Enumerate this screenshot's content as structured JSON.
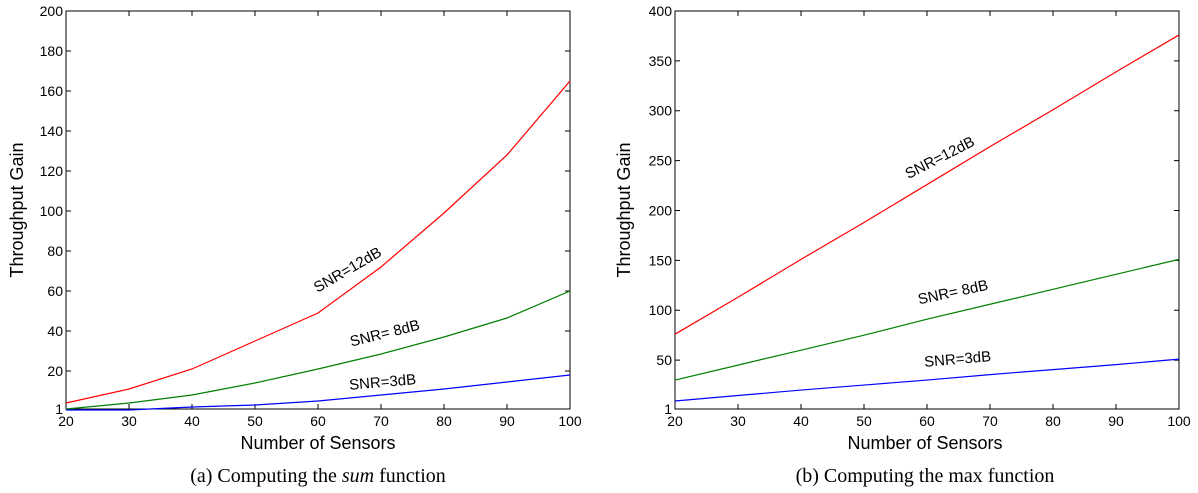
{
  "chart_data": [
    {
      "type": "line",
      "caption_prefix": "(a) Computing the ",
      "caption_em": "sum",
      "caption_suffix": " function",
      "xlabel": "Number of Sensors",
      "ylabel": "Throughput Gain",
      "xlim": [
        20,
        100
      ],
      "ylim": [
        1,
        200
      ],
      "xticks": [
        20,
        30,
        40,
        50,
        60,
        70,
        80,
        90,
        100
      ],
      "yticks": [
        1,
        20,
        40,
        60,
        80,
        100,
        120,
        140,
        160,
        180,
        200
      ],
      "grid": false,
      "x": [
        20,
        30,
        40,
        50,
        60,
        70,
        80,
        90,
        100
      ],
      "series": [
        {
          "name": "SNR=12dB",
          "color": "#ff0000",
          "values": [
            4,
            11,
            21,
            35,
            49,
            72,
            99,
            128,
            165
          ]
        },
        {
          "name": "SNR= 8dB",
          "color": "#008000",
          "values": [
            1,
            4,
            8,
            14,
            21,
            28.5,
            37,
            46.5,
            60
          ]
        },
        {
          "name": "SNR=3dB",
          "color": "#0000ff",
          "values": [
            0,
            0.5,
            2,
            3,
            5,
            8,
            11,
            14.5,
            18
          ]
        }
      ]
    },
    {
      "type": "line",
      "caption_prefix": "(b) Computing the max function",
      "caption_em": "",
      "caption_suffix": "",
      "xlabel": "Number of Sensors",
      "ylabel": "Throughput Gain",
      "xlim": [
        20,
        100
      ],
      "ylim": [
        1,
        400
      ],
      "xticks": [
        20,
        30,
        40,
        50,
        60,
        70,
        80,
        90,
        100
      ],
      "yticks": [
        1,
        50,
        100,
        150,
        200,
        250,
        300,
        350,
        400
      ],
      "grid": false,
      "x": [
        20,
        30,
        40,
        50,
        60,
        70,
        80,
        90,
        100
      ],
      "series": [
        {
          "name": "SNR=12dB",
          "color": "#ff0000",
          "values": [
            76,
            113,
            151,
            188,
            226,
            264,
            301,
            339,
            376
          ]
        },
        {
          "name": "SNR= 8dB",
          "color": "#008000",
          "values": [
            30,
            45,
            60,
            75,
            91,
            106,
            121,
            136,
            151
          ]
        },
        {
          "name": "SNR=3dB",
          "color": "#0000ff",
          "values": [
            9,
            14.5,
            20,
            25,
            30,
            35.5,
            40.5,
            45.5,
            51
          ]
        }
      ]
    }
  ]
}
